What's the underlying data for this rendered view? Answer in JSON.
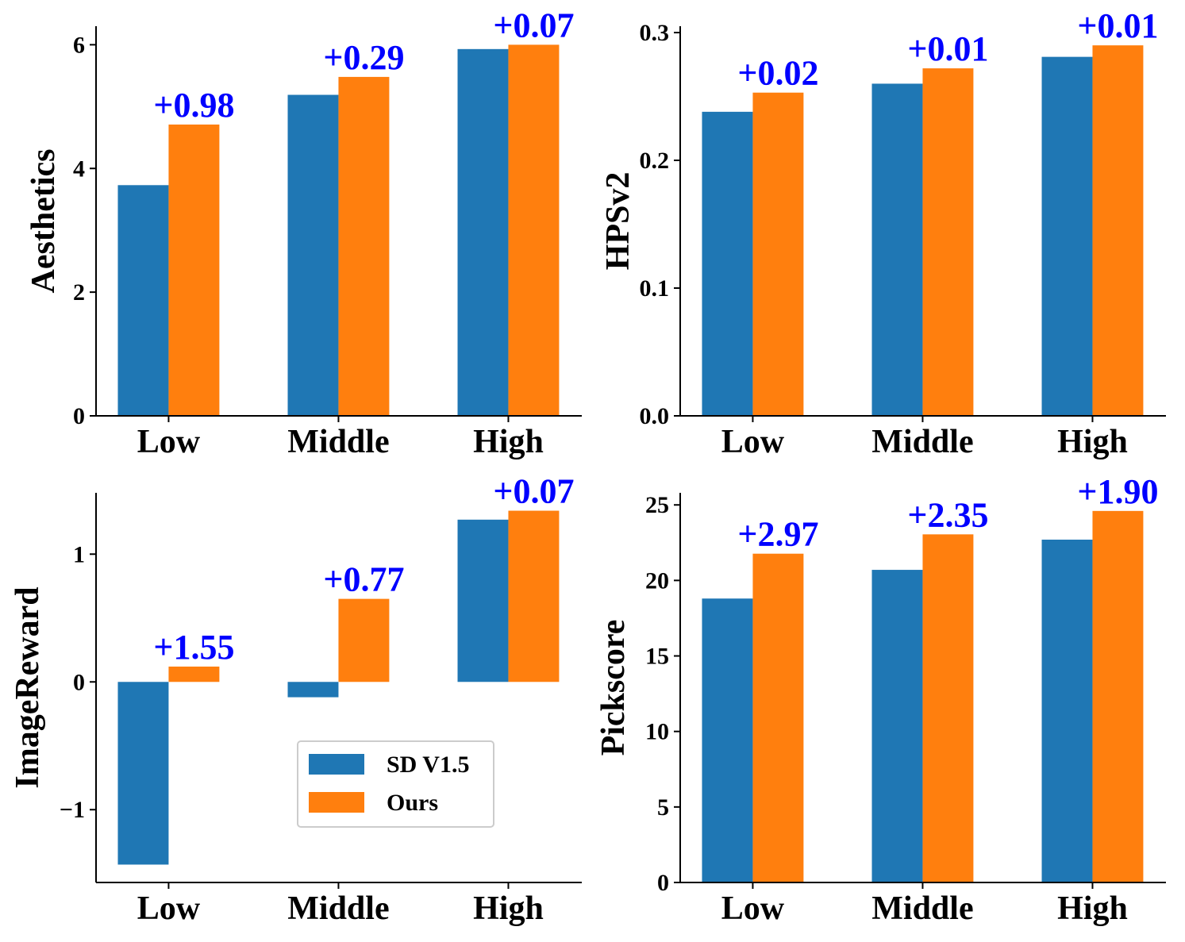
{
  "colors": {
    "sd": "#1f77b4",
    "ours": "#ff7f0e",
    "delta": "#0000ff",
    "axis": "#000000",
    "legend_border": "#cccccc"
  },
  "legend": {
    "entries": [
      "SD V1.5",
      "Ours"
    ],
    "location": "lower-right of ImageReward panel"
  },
  "chart_data": [
    {
      "id": "aesthetics",
      "type": "bar",
      "ylabel": "Aesthetics",
      "categories": [
        "Low",
        "Middle",
        "High"
      ],
      "series": [
        {
          "name": "SD V1.5",
          "values": [
            3.73,
            5.19,
            5.93
          ]
        },
        {
          "name": "Ours",
          "values": [
            4.71,
            5.48,
            6.0
          ]
        }
      ],
      "deltas": [
        "+0.98",
        "+0.29",
        "+0.07"
      ],
      "ylim": [
        0,
        6.3
      ],
      "yticks": [
        0,
        2,
        4,
        6
      ],
      "ytick_labels": [
        "0",
        "2",
        "4",
        "6"
      ]
    },
    {
      "id": "hpsv2",
      "type": "bar",
      "ylabel": "HPSv2",
      "categories": [
        "Low",
        "Middle",
        "High"
      ],
      "series": [
        {
          "name": "SD V1.5",
          "values": [
            0.238,
            0.26,
            0.281
          ]
        },
        {
          "name": "Ours",
          "values": [
            0.253,
            0.272,
            0.29
          ]
        }
      ],
      "deltas": [
        "+0.02",
        "+0.01",
        "+0.01"
      ],
      "ylim": [
        0,
        0.305
      ],
      "yticks": [
        0,
        0.1,
        0.2,
        0.3
      ],
      "ytick_labels": [
        "0.0",
        "0.1",
        "0.2",
        "0.3"
      ]
    },
    {
      "id": "imagereward",
      "type": "bar",
      "ylabel": "ImageReward",
      "categories": [
        "Low",
        "Middle",
        "High"
      ],
      "series": [
        {
          "name": "SD V1.5",
          "values": [
            -1.43,
            -0.12,
            1.27
          ]
        },
        {
          "name": "Ours",
          "values": [
            0.12,
            0.65,
            1.34
          ]
        }
      ],
      "deltas": [
        "+1.55",
        "+0.77",
        "+0.07"
      ],
      "ylim": [
        -1.57,
        1.48
      ],
      "yticks": [
        -1,
        0,
        1
      ],
      "ytick_labels": [
        "−1",
        "0",
        "1"
      ]
    },
    {
      "id": "pickscore",
      "type": "bar",
      "ylabel": "Pickscore",
      "categories": [
        "Low",
        "Middle",
        "High"
      ],
      "series": [
        {
          "name": "SD V1.5",
          "values": [
            18.8,
            20.7,
            22.7
          ]
        },
        {
          "name": "Ours",
          "values": [
            21.77,
            23.05,
            24.6
          ]
        }
      ],
      "deltas": [
        "+2.97",
        "+2.35",
        "+1.90"
      ],
      "ylim": [
        0,
        25.8
      ],
      "yticks": [
        0,
        5,
        10,
        15,
        20,
        25
      ],
      "ytick_labels": [
        "0",
        "5",
        "10",
        "15",
        "20",
        "25"
      ]
    }
  ]
}
